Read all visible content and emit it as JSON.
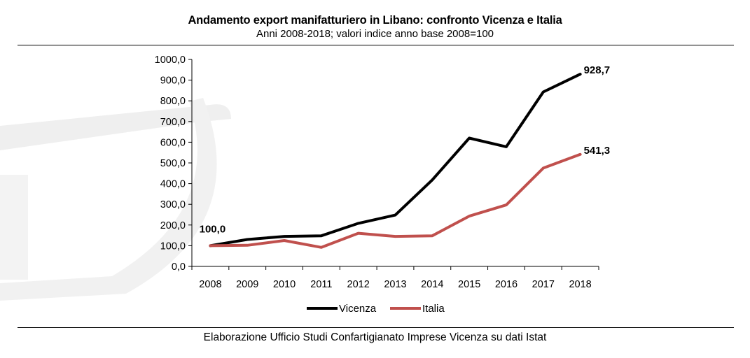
{
  "title": "Andamento export manifatturiero in Libano: confronto Vicenza e Italia",
  "subtitle": "Anni 2008-2018; valori indice anno base 2008=100",
  "footer": "Elaborazione Ufficio Studi Confartigianato Imprese Vicenza su dati Istat",
  "chart_data": {
    "type": "line",
    "title": "Andamento export manifatturiero in Libano: confronto Vicenza e Italia",
    "subtitle": "Anni 2008-2018; valori indice anno base 2008=100",
    "categories": [
      "2008",
      "2009",
      "2010",
      "2011",
      "2012",
      "2013",
      "2014",
      "2015",
      "2016",
      "2017",
      "2018"
    ],
    "y_ticks": [
      "0,0",
      "100,0",
      "200,0",
      "300,0",
      "400,0",
      "500,0",
      "600,0",
      "700,0",
      "800,0",
      "900,0",
      "1000,0"
    ],
    "ylim": [
      0,
      1000
    ],
    "xlabel": "",
    "ylabel": "",
    "legend_position": "bottom",
    "series": [
      {
        "name": "Vicenza",
        "color": "#000000",
        "values": [
          100.0,
          130.0,
          145.0,
          148.0,
          208.0,
          248.0,
          418.0,
          620.0,
          578.0,
          843.0,
          928.7
        ]
      },
      {
        "name": "Italia",
        "color": "#c0504d",
        "values": [
          100.0,
          102.0,
          125.0,
          92.0,
          160.0,
          145.0,
          148.0,
          243.0,
          297.0,
          475.0,
          541.3
        ]
      }
    ],
    "annotations": [
      {
        "text": "100,0",
        "series": "Vicenza",
        "category": "2008",
        "value": 100.0
      },
      {
        "text": "928,7",
        "series": "Vicenza",
        "category": "2018",
        "value": 928.7
      },
      {
        "text": "541,3",
        "series": "Italia",
        "category": "2018",
        "value": 541.3
      }
    ]
  }
}
